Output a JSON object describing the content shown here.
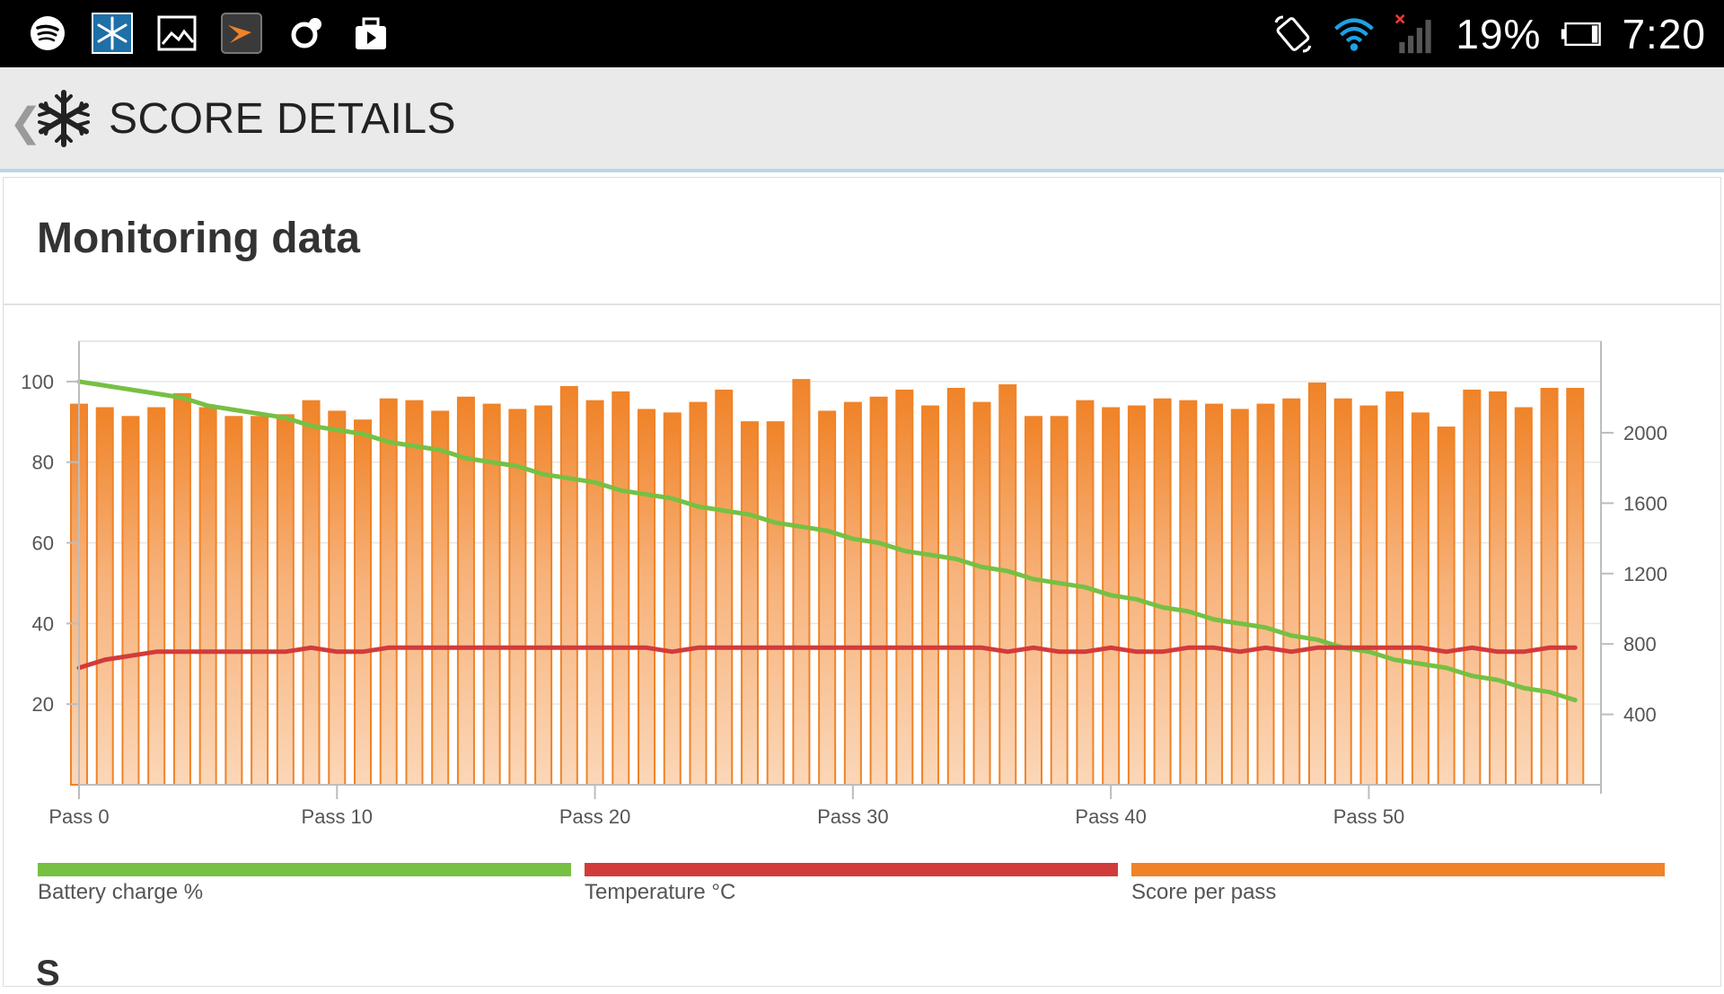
{
  "status_bar": {
    "battery_percent": "19%",
    "time": "7:20",
    "left_icons": [
      "spotify-icon",
      "snowflake-app-icon",
      "gallery-icon",
      "speed-app-icon",
      "sync-icon",
      "video-icon"
    ],
    "right_icons": [
      "rotate-icon",
      "wifi-icon",
      "signal-icon",
      "battery-icon"
    ]
  },
  "app_bar": {
    "title": "SCORE DETAILS",
    "back_icon": "chevron-left-icon",
    "logo_icon": "snowflake-icon"
  },
  "card": {
    "title": "Monitoring data"
  },
  "colors": {
    "battery": "#76c043",
    "temperature": "#d23b3b",
    "score": "#f08328",
    "score_light": "#fbd7b8",
    "grid": "#e6e6e6",
    "axis": "#bdbdbd",
    "tick_text": "#555555"
  },
  "legend": [
    {
      "label": "Battery charge %",
      "color": "#76c043"
    },
    {
      "label": "Temperature °C",
      "color": "#d23b3b"
    },
    {
      "label": "Score per pass",
      "color": "#f08328"
    }
  ],
  "next_section_peek": "S",
  "chart_data": {
    "type": "bar",
    "x_tick_labels": [
      "Pass 0",
      "Pass 10",
      "Pass 20",
      "Pass 30",
      "Pass 40",
      "Pass 50"
    ],
    "x_ticks": [
      0,
      10,
      20,
      30,
      40,
      50
    ],
    "xlim": [
      0,
      59
    ],
    "y_left": {
      "ylim": [
        0,
        110
      ],
      "ticks": [
        20,
        40,
        60,
        80,
        100
      ],
      "tick_labels": [
        "20",
        "40",
        "60",
        "80",
        "100"
      ]
    },
    "y_right": {
      "ylim": [
        0,
        2520
      ],
      "ticks": [
        400,
        800,
        1200,
        1600,
        2000
      ],
      "tick_labels": [
        "400",
        "800",
        "1200",
        "1600",
        "2000"
      ]
    },
    "grid": true,
    "legend_position": "bottom",
    "series": [
      {
        "name": "Score per pass",
        "axis": "right",
        "type": "bar",
        "x": [
          0,
          1,
          2,
          3,
          4,
          5,
          6,
          7,
          8,
          9,
          10,
          11,
          12,
          13,
          14,
          15,
          16,
          17,
          18,
          19,
          20,
          21,
          22,
          23,
          24,
          25,
          26,
          27,
          28,
          29,
          30,
          31,
          32,
          33,
          34,
          35,
          36,
          37,
          38,
          39,
          40,
          41,
          42,
          43,
          44,
          45,
          46,
          47,
          48,
          49,
          50,
          51,
          52,
          53,
          54,
          55,
          56,
          57,
          58
        ],
        "values": [
          2160,
          2140,
          2090,
          2140,
          2220,
          2140,
          2090,
          2090,
          2100,
          2180,
          2120,
          2070,
          2190,
          2180,
          2120,
          2200,
          2160,
          2130,
          2150,
          2260,
          2180,
          2230,
          2130,
          2110,
          2170,
          2240,
          2060,
          2060,
          2300,
          2120,
          2170,
          2200,
          2240,
          2150,
          2250,
          2170,
          2270,
          2090,
          2090,
          2180,
          2140,
          2150,
          2190,
          2180,
          2160,
          2130,
          2160,
          2190,
          2280,
          2190,
          2150,
          2230,
          2110,
          2030,
          2240,
          2230,
          2140,
          2250,
          2250
        ]
      },
      {
        "name": "Battery charge %",
        "axis": "left",
        "type": "line",
        "x": [
          0,
          1,
          2,
          3,
          4,
          5,
          6,
          7,
          8,
          9,
          10,
          11,
          12,
          13,
          14,
          15,
          16,
          17,
          18,
          19,
          20,
          21,
          22,
          23,
          24,
          25,
          26,
          27,
          28,
          29,
          30,
          31,
          32,
          33,
          34,
          35,
          36,
          37,
          38,
          39,
          40,
          41,
          42,
          43,
          44,
          45,
          46,
          47,
          48,
          49,
          50,
          51,
          52,
          53,
          54,
          55,
          56,
          57,
          58
        ],
        "values": [
          100,
          99,
          98,
          97,
          96,
          94,
          93,
          92,
          91,
          89,
          88,
          87,
          85,
          84,
          83,
          81,
          80,
          79,
          77,
          76,
          75,
          73,
          72,
          71,
          69,
          68,
          67,
          65,
          64,
          63,
          61,
          60,
          58,
          57,
          56,
          54,
          53,
          51,
          50,
          49,
          47,
          46,
          44,
          43,
          41,
          40,
          39,
          37,
          36,
          34,
          33,
          31,
          30,
          29,
          27,
          26,
          24,
          23,
          21
        ]
      },
      {
        "name": "Temperature °C",
        "axis": "left",
        "type": "line",
        "x": [
          0,
          1,
          2,
          3,
          4,
          5,
          6,
          7,
          8,
          9,
          10,
          11,
          12,
          13,
          14,
          15,
          16,
          17,
          18,
          19,
          20,
          21,
          22,
          23,
          24,
          25,
          26,
          27,
          28,
          29,
          30,
          31,
          32,
          33,
          34,
          35,
          36,
          37,
          38,
          39,
          40,
          41,
          42,
          43,
          44,
          45,
          46,
          47,
          48,
          49,
          50,
          51,
          52,
          53,
          54,
          55,
          56,
          57,
          58
        ],
        "values": [
          29,
          31,
          32,
          33,
          33,
          33,
          33,
          33,
          33,
          34,
          33,
          33,
          34,
          34,
          34,
          34,
          34,
          34,
          34,
          34,
          34,
          34,
          34,
          33,
          34,
          34,
          34,
          34,
          34,
          34,
          34,
          34,
          34,
          34,
          34,
          34,
          33,
          34,
          33,
          33,
          34,
          33,
          33,
          34,
          34,
          33,
          34,
          33,
          34,
          34,
          34,
          34,
          34,
          33,
          34,
          33,
          33,
          34,
          34
        ]
      }
    ]
  }
}
